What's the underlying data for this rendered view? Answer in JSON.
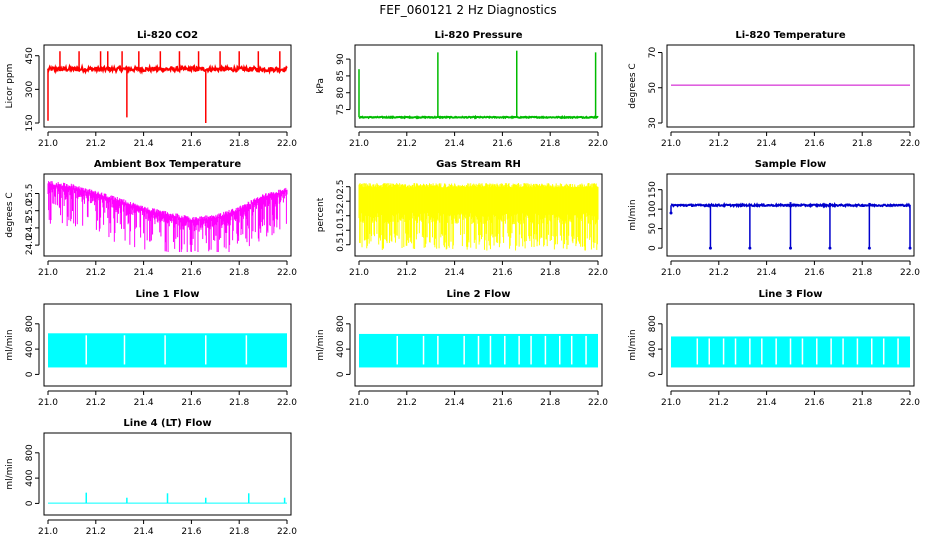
{
  "figure": {
    "title": "FEF_060121  2 Hz Diagnostics"
  },
  "chart_data": [
    {
      "id": "co2",
      "type": "line",
      "title": "Li-820 CO2",
      "ylabel": "Licor ppm",
      "x_ticks": [
        21.0,
        21.2,
        21.4,
        21.6,
        21.8,
        22.0
      ],
      "y_ticks": [
        150,
        300,
        450
      ],
      "y_tick_labels": [
        "150",
        "300",
        "450"
      ],
      "xlim": [
        21.0,
        22.0
      ],
      "ylim": [
        150,
        480
      ],
      "color": "#ff0000",
      "series": [
        {
          "baseline": 390,
          "noise": 10,
          "spikes": [
            {
              "x": 21.0,
              "y": 160
            },
            {
              "x": 21.05,
              "y": 470
            },
            {
              "x": 21.13,
              "y": 470
            },
            {
              "x": 21.22,
              "y": 470
            },
            {
              "x": 21.25,
              "y": 470
            },
            {
              "x": 21.31,
              "y": 470
            },
            {
              "x": 21.33,
              "y": 175
            },
            {
              "x": 21.38,
              "y": 470
            },
            {
              "x": 21.47,
              "y": 470
            },
            {
              "x": 21.55,
              "y": 470
            },
            {
              "x": 21.63,
              "y": 470
            },
            {
              "x": 21.66,
              "y": 150
            },
            {
              "x": 21.72,
              "y": 470
            },
            {
              "x": 21.8,
              "y": 470
            },
            {
              "x": 21.88,
              "y": 470
            },
            {
              "x": 21.97,
              "y": 470
            }
          ]
        }
      ]
    },
    {
      "id": "pressure",
      "type": "line",
      "title": "Li-820 Pressure",
      "ylabel": "kPa",
      "x_ticks": [
        21.0,
        21.2,
        21.4,
        21.6,
        21.8,
        22.0
      ],
      "y_ticks": [
        75,
        80,
        85,
        90
      ],
      "y_tick_labels": [
        "75",
        "80",
        "85",
        "90"
      ],
      "xlim": [
        21.0,
        22.0
      ],
      "ylim": [
        71,
        93
      ],
      "color": "#00bb00",
      "series": [
        {
          "baseline": 72.7,
          "noise": 0.15,
          "spikes": [
            {
              "x": 21.0,
              "y": 87
            },
            {
              "x": 21.33,
              "y": 92
            },
            {
              "x": 21.66,
              "y": 92.5
            },
            {
              "x": 21.99,
              "y": 92
            }
          ]
        }
      ]
    },
    {
      "id": "temperature",
      "type": "line",
      "title": "Li-820 Temperature",
      "ylabel": "degrees C",
      "x_ticks": [
        21.0,
        21.2,
        21.4,
        21.6,
        21.8,
        22.0
      ],
      "y_ticks": [
        30,
        50,
        70
      ],
      "y_tick_labels": [
        "30",
        "50",
        "70"
      ],
      "xlim": [
        21.0,
        22.0
      ],
      "ylim": [
        30,
        72
      ],
      "color": "#cc00cc",
      "series": [
        {
          "baseline": 51.5,
          "noise": 0,
          "spikes": []
        }
      ]
    },
    {
      "id": "ambient-box-temp",
      "type": "line",
      "title": "Ambient Box Temperature",
      "ylabel": "degrees C",
      "x_ticks": [
        21.0,
        21.2,
        21.4,
        21.6,
        21.8,
        22.0
      ],
      "y_ticks": [
        24.0,
        24.5,
        25.0,
        25.5
      ],
      "y_tick_labels": [
        "24.0",
        "24.5",
        "25.0",
        "25.5"
      ],
      "xlim": [
        21.0,
        22.0
      ],
      "ylim": [
        23.8,
        25.95
      ],
      "color": "#ff00ff",
      "series": [
        {
          "band_top_curve": [
            [
              21.0,
              25.8
            ],
            [
              21.1,
              25.7
            ],
            [
              21.2,
              25.5
            ],
            [
              21.3,
              25.3
            ],
            [
              21.4,
              25.05
            ],
            [
              21.5,
              24.9
            ],
            [
              21.6,
              24.75
            ],
            [
              21.7,
              24.8
            ],
            [
              21.8,
              25.05
            ],
            [
              21.9,
              25.4
            ],
            [
              22.0,
              25.6
            ]
          ],
          "band_depth": 0.55,
          "min_dip": 23.8
        }
      ]
    },
    {
      "id": "gas-stream-rh",
      "type": "line",
      "title": "Gas Stream RH",
      "ylabel": "percent",
      "x_ticks": [
        21.0,
        21.2,
        21.4,
        21.6,
        21.8,
        22.0
      ],
      "y_ticks": [
        0.5,
        1.0,
        1.5,
        2.0,
        2.5
      ],
      "y_tick_labels": [
        "0.5",
        "1.0",
        "1.5",
        "2.0",
        "2.5"
      ],
      "xlim": [
        21.0,
        22.0
      ],
      "ylim": [
        0.25,
        2.8
      ],
      "color": "#ffff00",
      "series": [
        {
          "band_top": 2.55,
          "band_solid_bottom": 1.6,
          "min_dip": 0.3
        }
      ]
    },
    {
      "id": "sample-flow",
      "type": "line",
      "title": "Sample Flow",
      "ylabel": "ml/min",
      "x_ticks": [
        21.0,
        21.2,
        21.4,
        21.6,
        21.8,
        22.0
      ],
      "y_ticks": [
        0,
        50,
        100,
        150
      ],
      "y_tick_labels": [
        "0",
        "50",
        "100",
        "150"
      ],
      "xlim": [
        21.0,
        22.0
      ],
      "ylim": [
        -10,
        180
      ],
      "color": "#0000cc",
      "series": [
        {
          "baseline": 110,
          "noise": 2,
          "dips": [
            {
              "x": 21.0,
              "y": 90
            },
            {
              "x": 21.165,
              "y": 0
            },
            {
              "x": 21.33,
              "y": 0
            },
            {
              "x": 21.5,
              "y": 0
            },
            {
              "x": 21.665,
              "y": 0
            },
            {
              "x": 21.83,
              "y": 0
            },
            {
              "x": 22.0,
              "y": 0
            }
          ],
          "bumps": [
            {
              "x": 21.5,
              "y": 118
            },
            {
              "x": 21.665,
              "y": 116
            },
            {
              "x": 21.83,
              "y": 116
            }
          ]
        }
      ]
    },
    {
      "id": "line1-flow",
      "type": "line",
      "title": "Line 1 Flow",
      "ylabel": "ml/min",
      "x_ticks": [
        21.0,
        21.2,
        21.4,
        21.6,
        21.8,
        22.0
      ],
      "y_ticks": [
        0,
        400,
        800
      ],
      "y_tick_labels": [
        "0",
        "400",
        "800"
      ],
      "xlim": [
        21.0,
        22.0
      ],
      "ylim": [
        -120,
        1050
      ],
      "color": "#00ffff",
      "series": [
        {
          "band_top": 650,
          "band_bottom": 110,
          "gaps": [
            21.16,
            21.32,
            21.49,
            21.66,
            21.83
          ]
        }
      ]
    },
    {
      "id": "line2-flow",
      "type": "line",
      "title": "Line 2 Flow",
      "ylabel": "ml/min",
      "x_ticks": [
        21.0,
        21.2,
        21.4,
        21.6,
        21.8,
        22.0
      ],
      "y_ticks": [
        0,
        400,
        800
      ],
      "y_tick_labels": [
        "0",
        "400",
        "800"
      ],
      "xlim": [
        21.0,
        22.0
      ],
      "ylim": [
        -120,
        1050
      ],
      "color": "#00ffff",
      "series": [
        {
          "band_top": 640,
          "band_bottom": 110,
          "gaps": [
            21.16,
            21.27,
            21.33,
            21.44,
            21.5,
            21.55,
            21.61,
            21.67,
            21.72,
            21.78,
            21.84,
            21.89,
            21.95
          ]
        }
      ]
    },
    {
      "id": "line3-flow",
      "type": "line",
      "title": "Line 3 Flow",
      "ylabel": "ml/min",
      "x_ticks": [
        21.0,
        21.2,
        21.4,
        21.6,
        21.8,
        22.0
      ],
      "y_ticks": [
        0,
        400,
        800
      ],
      "y_tick_labels": [
        "0",
        "400",
        "800"
      ],
      "xlim": [
        21.0,
        22.0
      ],
      "ylim": [
        -120,
        1050
      ],
      "color": "#00ffff",
      "series": [
        {
          "band_top": 600,
          "band_bottom": 110,
          "gaps": [
            21.11,
            21.16,
            21.22,
            21.27,
            21.33,
            21.38,
            21.44,
            21.5,
            21.55,
            21.61,
            21.67,
            21.72,
            21.78,
            21.84,
            21.89,
            21.95
          ]
        }
      ]
    },
    {
      "id": "line4-flow",
      "type": "line",
      "title": "Line 4 (LT) Flow",
      "ylabel": "ml/min",
      "x_ticks": [
        21.0,
        21.2,
        21.4,
        21.6,
        21.8,
        22.0
      ],
      "y_ticks": [
        0,
        400,
        800
      ],
      "y_tick_labels": [
        "0",
        "400",
        "800"
      ],
      "xlim": [
        21.0,
        22.0
      ],
      "ylim": [
        -120,
        1050
      ],
      "color": "#00ffff",
      "series": [
        {
          "baseline": 5,
          "noise": 0,
          "spikes": [
            {
              "x": 21.16,
              "y": 170
            },
            {
              "x": 21.33,
              "y": 90
            },
            {
              "x": 21.5,
              "y": 160
            },
            {
              "x": 21.66,
              "y": 90
            },
            {
              "x": 21.84,
              "y": 160
            },
            {
              "x": 21.99,
              "y": 90
            }
          ]
        }
      ]
    }
  ]
}
